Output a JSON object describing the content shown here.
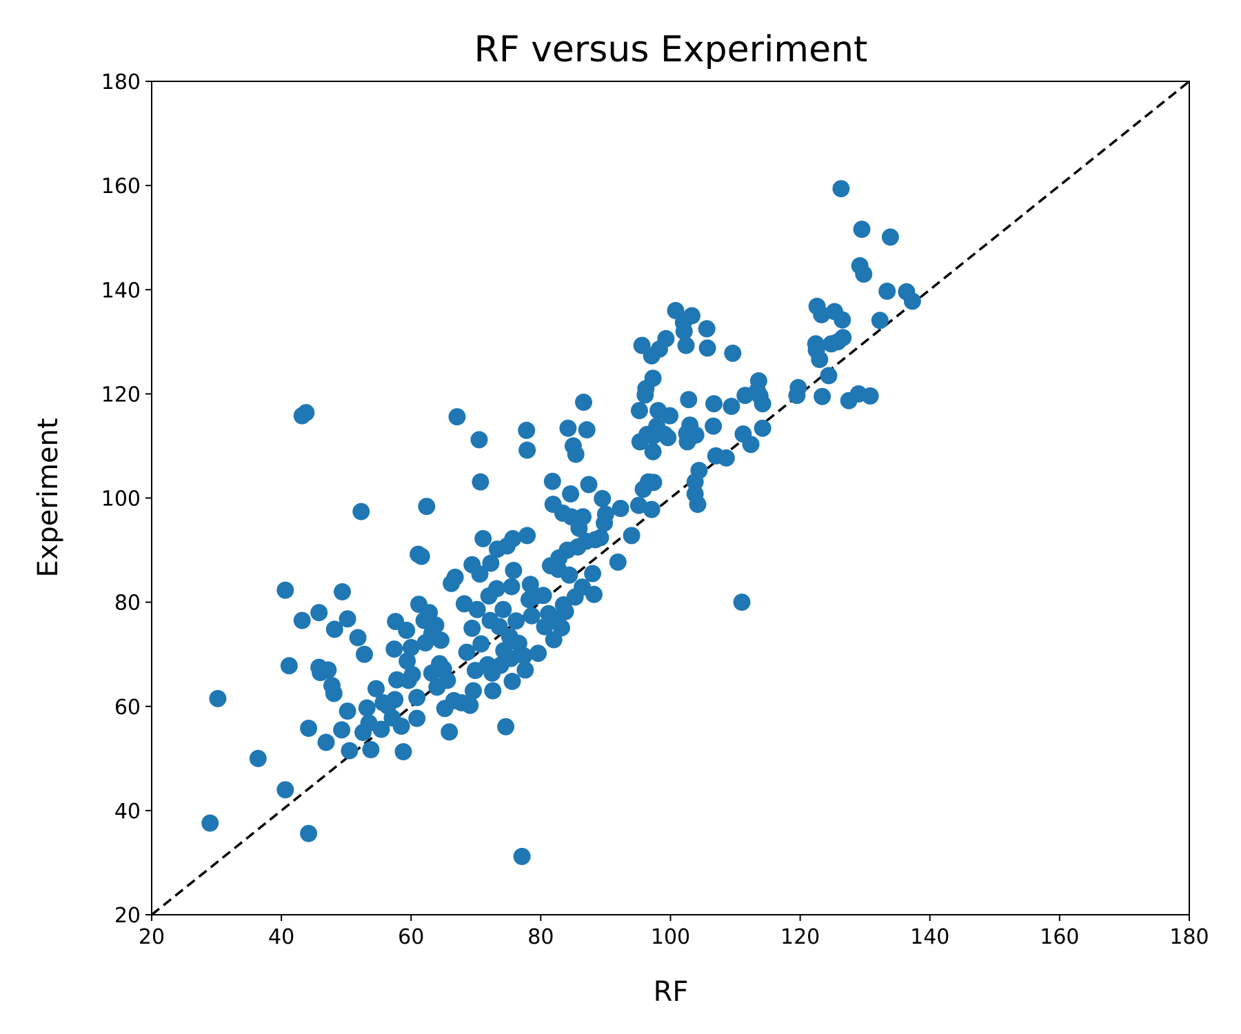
{
  "chart_data": {
    "type": "scatter",
    "title": "RF versus Experiment",
    "xlabel": "RF",
    "ylabel": "Experiment",
    "xlim": [
      20,
      180
    ],
    "ylim": [
      20,
      180
    ],
    "xticks": [
      "20",
      "40",
      "60",
      "80",
      "100",
      "120",
      "140",
      "160",
      "180"
    ],
    "yticks": [
      "20",
      "40",
      "60",
      "80",
      "100",
      "120",
      "140",
      "160",
      "180"
    ],
    "grid": false,
    "point_color": "#1f77b4",
    "reference_line": {
      "style": "dashed",
      "color": "#000000",
      "from": [
        20,
        20
      ],
      "to": [
        180,
        180
      ]
    },
    "points": [
      [
        29,
        37.6
      ],
      [
        30.2,
        61.5
      ],
      [
        36.4,
        50
      ],
      [
        40.6,
        82.3
      ],
      [
        40.6,
        44
      ],
      [
        41.2,
        67.8
      ],
      [
        43.2,
        76.5
      ],
      [
        43.2,
        115.8
      ],
      [
        43.8,
        116.4
      ],
      [
        44.2,
        55.8
      ],
      [
        44.2,
        35.6
      ],
      [
        45.8,
        78
      ],
      [
        45.8,
        67.5
      ],
      [
        46,
        66.5
      ],
      [
        46.9,
        53.1
      ],
      [
        47.2,
        67
      ],
      [
        47.8,
        64
      ],
      [
        48.1,
        62.5
      ],
      [
        48.2,
        74.8
      ],
      [
        49.3,
        55.5
      ],
      [
        49.4,
        82
      ],
      [
        50.2,
        59.1
      ],
      [
        50.2,
        76.8
      ],
      [
        50.5,
        51.5
      ],
      [
        51.8,
        73.2
      ],
      [
        52.3,
        97.4
      ],
      [
        52.6,
        55
      ],
      [
        52.8,
        70
      ],
      [
        53.2,
        59.7
      ],
      [
        53.5,
        56.8
      ],
      [
        53.8,
        51.7
      ],
      [
        54.6,
        63.4
      ],
      [
        55.4,
        55.6
      ],
      [
        55.7,
        60.7
      ],
      [
        56.4,
        60.1
      ],
      [
        57.1,
        57.8
      ],
      [
        57.4,
        71
      ],
      [
        57.5,
        61.3
      ],
      [
        57.6,
        76.3
      ],
      [
        57.8,
        65.1
      ],
      [
        58.5,
        56.2
      ],
      [
        58.8,
        51.3
      ],
      [
        59.3,
        74.6
      ],
      [
        59.4,
        68.7
      ],
      [
        59.6,
        65
      ],
      [
        60,
        71.3
      ],
      [
        60.2,
        66.1
      ],
      [
        60.9,
        61.7
      ],
      [
        60.9,
        57.7
      ],
      [
        61.1,
        89.2
      ],
      [
        61.2,
        79.6
      ],
      [
        61.6,
        88.8
      ],
      [
        62,
        76.5
      ],
      [
        62.2,
        72.2
      ],
      [
        62.4,
        98.4
      ],
      [
        62.8,
        78
      ],
      [
        63.2,
        66.4
      ],
      [
        63.2,
        74
      ],
      [
        63.8,
        75.6
      ],
      [
        64,
        63.7
      ],
      [
        64.4,
        68.2
      ],
      [
        64.6,
        72.7
      ],
      [
        65,
        67.2
      ],
      [
        65.2,
        59.6
      ],
      [
        65.6,
        65
      ],
      [
        65.9,
        55.1
      ],
      [
        66.2,
        83.6
      ],
      [
        66.6,
        61.1
      ],
      [
        66.8,
        84.8
      ],
      [
        67.1,
        115.6
      ],
      [
        67.8,
        60.7
      ],
      [
        68.2,
        79.7
      ],
      [
        68.6,
        70.4
      ],
      [
        69.1,
        60.2
      ],
      [
        69.4,
        75
      ],
      [
        69.4,
        87.2
      ],
      [
        69.6,
        63
      ],
      [
        69.9,
        66.9
      ],
      [
        70.2,
        78.6
      ],
      [
        70.5,
        111.2
      ],
      [
        70.6,
        85.4
      ],
      [
        70.7,
        103.1
      ],
      [
        70.8,
        72
      ],
      [
        71.1,
        92.2
      ],
      [
        71.8,
        68
      ],
      [
        72,
        81.2
      ],
      [
        72.2,
        76.5
      ],
      [
        72.3,
        87.5
      ],
      [
        72.5,
        66.4
      ],
      [
        72.6,
        63
      ],
      [
        73.2,
        82.6
      ],
      [
        73.3,
        90.2
      ],
      [
        73.6,
        75.3
      ],
      [
        73.8,
        67.9
      ],
      [
        74.2,
        78.6
      ],
      [
        74.3,
        70.7
      ],
      [
        74.6,
        56.1
      ],
      [
        74.8,
        90.8
      ],
      [
        75.2,
        73.4
      ],
      [
        75.4,
        69.2
      ],
      [
        75.5,
        83
      ],
      [
        75.6,
        64.8
      ],
      [
        75.7,
        92.2
      ],
      [
        75.8,
        86.1
      ],
      [
        76.2,
        76.4
      ],
      [
        76.6,
        72.1
      ],
      [
        77.1,
        31.2
      ],
      [
        77.4,
        69.7
      ],
      [
        77.6,
        67
      ],
      [
        77.8,
        113
      ],
      [
        77.9,
        109.2
      ],
      [
        77.9,
        92.8
      ],
      [
        78.2,
        80.5
      ],
      [
        78.4,
        83.4
      ],
      [
        78.6,
        77.4
      ],
      [
        79.3,
        81.2
      ],
      [
        79.6,
        70.2
      ],
      [
        80.4,
        81.3
      ],
      [
        80.6,
        75.3
      ],
      [
        81.2,
        77.8
      ],
      [
        81.5,
        87
      ],
      [
        81.8,
        103.2
      ],
      [
        81.9,
        98.8
      ],
      [
        82,
        72.8
      ],
      [
        82.4,
        76.6
      ],
      [
        82.7,
        86.3
      ],
      [
        82.8,
        88.5
      ],
      [
        83.2,
        75.1
      ],
      [
        83.4,
        97.1
      ],
      [
        83.5,
        79.5
      ],
      [
        83.8,
        78.2
      ],
      [
        84.1,
        90
      ],
      [
        84.2,
        113.4
      ],
      [
        84.4,
        85.2
      ],
      [
        84.6,
        100.8
      ],
      [
        84.7,
        96.4
      ],
      [
        85,
        110
      ],
      [
        85.3,
        81
      ],
      [
        85.4,
        108.4
      ],
      [
        85.7,
        90.6
      ],
      [
        85.9,
        94.2
      ],
      [
        86.4,
        82.9
      ],
      [
        86.5,
        96.4
      ],
      [
        86.6,
        118.4
      ],
      [
        87,
        91.7
      ],
      [
        87.1,
        113.1
      ],
      [
        87.4,
        102.6
      ],
      [
        88,
        85.5
      ],
      [
        88.2,
        81.5
      ],
      [
        88.4,
        92
      ],
      [
        89.2,
        92.4
      ],
      [
        89.5,
        99.9
      ],
      [
        89.8,
        95.2
      ],
      [
        90,
        96.9
      ],
      [
        91.9,
        87.7
      ],
      [
        92.3,
        98
      ],
      [
        94,
        92.8
      ],
      [
        95.1,
        98.6
      ],
      [
        95.2,
        116.8
      ],
      [
        95.3,
        110.8
      ],
      [
        95.6,
        129.3
      ],
      [
        95.8,
        101.7
      ],
      [
        96.1,
        119.8
      ],
      [
        96.2,
        121
      ],
      [
        96.4,
        112.2
      ],
      [
        96.6,
        103.1
      ],
      [
        97.1,
        97.8
      ],
      [
        97.1,
        127.3
      ],
      [
        97.3,
        123
      ],
      [
        97.3,
        111.9
      ],
      [
        97.3,
        108.9
      ],
      [
        97.4,
        103
      ],
      [
        97.9,
        113.8
      ],
      [
        98.1,
        116.8
      ],
      [
        98.3,
        128.6
      ],
      [
        99.1,
        112.2
      ],
      [
        99.3,
        130.6
      ],
      [
        99.6,
        111.6
      ],
      [
        99.9,
        115.8
      ],
      [
        100.8,
        136
      ],
      [
        102,
        133.7
      ],
      [
        102.1,
        132
      ],
      [
        102.4,
        129.3
      ],
      [
        102.5,
        112.4
      ],
      [
        102.6,
        110.8
      ],
      [
        102.8,
        118.9
      ],
      [
        103,
        114
      ],
      [
        103.3,
        135
      ],
      [
        103.8,
        103.1
      ],
      [
        103.8,
        100.8
      ],
      [
        103.9,
        112.1
      ],
      [
        104.2,
        98.8
      ],
      [
        104.4,
        105.3
      ],
      [
        105.6,
        132.5
      ],
      [
        105.7,
        128.8
      ],
      [
        106.6,
        113.8
      ],
      [
        106.7,
        118.1
      ],
      [
        107,
        108.1
      ],
      [
        108.6,
        107.7
      ],
      [
        109.4,
        117.6
      ],
      [
        109.6,
        127.8
      ],
      [
        111,
        80
      ],
      [
        111.2,
        112.3
      ],
      [
        111.5,
        119.7
      ],
      [
        112.4,
        110.3
      ],
      [
        113.4,
        120.6
      ],
      [
        113.6,
        122.5
      ],
      [
        113.8,
        119.6
      ],
      [
        114.2,
        118.1
      ],
      [
        114.2,
        113.4
      ],
      [
        119.5,
        119.7
      ],
      [
        119.7,
        121.2
      ],
      [
        122.4,
        129.6
      ],
      [
        122.5,
        128.4
      ],
      [
        122.6,
        136.8
      ],
      [
        123,
        126.6
      ],
      [
        123.3,
        135.2
      ],
      [
        123.4,
        119.5
      ],
      [
        124.4,
        123.5
      ],
      [
        124.8,
        129.6
      ],
      [
        125.3,
        135.8
      ],
      [
        125.8,
        130
      ],
      [
        126.3,
        159.4
      ],
      [
        126.5,
        134.2
      ],
      [
        126.6,
        130.8
      ],
      [
        127.5,
        118.7
      ],
      [
        129,
        120
      ],
      [
        129.2,
        144.6
      ],
      [
        129.5,
        151.6
      ],
      [
        129.8,
        143
      ],
      [
        130.8,
        119.6
      ],
      [
        132.3,
        134.1
      ],
      [
        133.4,
        139.7
      ],
      [
        133.9,
        150.1
      ],
      [
        136.4,
        139.6
      ],
      [
        137.3,
        137.8
      ]
    ]
  }
}
